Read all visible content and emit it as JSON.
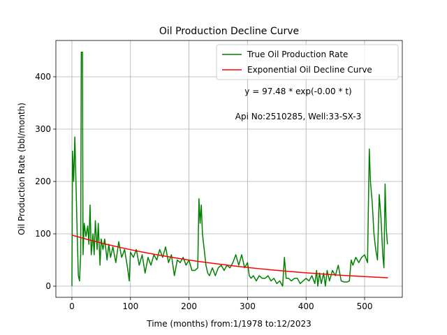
{
  "chart_data": {
    "type": "line",
    "title": "Oil Production Decline Curve",
    "xlabel": "Time (months) from:1/1978 to:12/2023",
    "ylabel": "Oil Production Rate (bbl/month)",
    "annotations": [
      "y = 97.48 * exp(-0.00 * t)",
      "Api No:2510285, Well:33-SX-3"
    ],
    "xlim": [
      -27.4,
      564.4
    ],
    "ylim": [
      -21.3,
      469.3
    ],
    "xticks": [
      0,
      100,
      200,
      300,
      400,
      500
    ],
    "yticks": [
      0,
      100,
      200,
      300,
      400
    ],
    "grid": true,
    "legend": "upper right",
    "series": [
      {
        "name": "True Oil Production Rate",
        "color": "#008000",
        "x": [
          0,
          1,
          3,
          5,
          7,
          9,
          11,
          13,
          15,
          16,
          18,
          19,
          21,
          24,
          27,
          29,
          31,
          33,
          36,
          38,
          40,
          43,
          45,
          48,
          50,
          53,
          56,
          60,
          63,
          66,
          70,
          75,
          80,
          85,
          90,
          95,
          98,
          100,
          105,
          110,
          115,
          120,
          125,
          130,
          135,
          140,
          145,
          150,
          155,
          160,
          165,
          170,
          175,
          180,
          185,
          190,
          195,
          200,
          205,
          210,
          215,
          217,
          219,
          221,
          223,
          226,
          229,
          232,
          235,
          240,
          245,
          250,
          255,
          260,
          265,
          270,
          275,
          280,
          285,
          290,
          295,
          300,
          303,
          306,
          310,
          315,
          320,
          325,
          330,
          335,
          340,
          345,
          350,
          355,
          360,
          363,
          366,
          370,
          375,
          380,
          385,
          390,
          395,
          400,
          405,
          410,
          415,
          418,
          420,
          423,
          426,
          430,
          433,
          436,
          440,
          445,
          450,
          455,
          460,
          465,
          470,
          474,
          477,
          480,
          485,
          490,
          495,
          500,
          505,
          508,
          510,
          513,
          516,
          519,
          522,
          525,
          528,
          531,
          533,
          535,
          537,
          539
        ],
        "values": [
          0,
          258,
          200,
          285,
          195,
          100,
          20,
          10,
          60,
          447,
          447,
          60,
          120,
          95,
          115,
          80,
          155,
          60,
          100,
          60,
          125,
          70,
          120,
          40,
          90,
          70,
          90,
          50,
          80,
          55,
          75,
          45,
          85,
          55,
          70,
          35,
          10,
          65,
          55,
          70,
          40,
          60,
          25,
          55,
          40,
          60,
          50,
          70,
          55,
          75,
          45,
          60,
          20,
          50,
          45,
          55,
          40,
          50,
          30,
          30,
          35,
          167,
          120,
          155,
          100,
          70,
          40,
          25,
          20,
          35,
          20,
          35,
          40,
          30,
          40,
          35,
          45,
          60,
          40,
          60,
          35,
          45,
          20,
          15,
          20,
          10,
          20,
          15,
          15,
          20,
          10,
          15,
          5,
          10,
          0,
          55,
          15,
          15,
          10,
          15,
          15,
          5,
          10,
          15,
          10,
          20,
          5,
          30,
          0,
          25,
          5,
          25,
          0,
          30,
          10,
          30,
          20,
          40,
          10,
          8,
          8,
          10,
          50,
          40,
          55,
          45,
          55,
          60,
          45,
          262,
          200,
          160,
          100,
          70,
          50,
          175,
          130,
          60,
          35,
          195,
          110,
          80
        ]
      },
      {
        "name": "Exponential Oil Decline Curve",
        "color": "#ff0000",
        "x": [
          0,
          30,
          60,
          90,
          120,
          150,
          180,
          210,
          240,
          270,
          300,
          330,
          360,
          390,
          420,
          450,
          480,
          510,
          540
        ],
        "values": [
          97.48,
          88.16,
          79.73,
          72.11,
          65.22,
          58.98,
          53.34,
          48.25,
          43.63,
          39.46,
          35.69,
          32.28,
          29.19,
          26.4,
          23.88,
          21.59,
          19.53,
          17.66,
          15.97
        ]
      }
    ]
  }
}
